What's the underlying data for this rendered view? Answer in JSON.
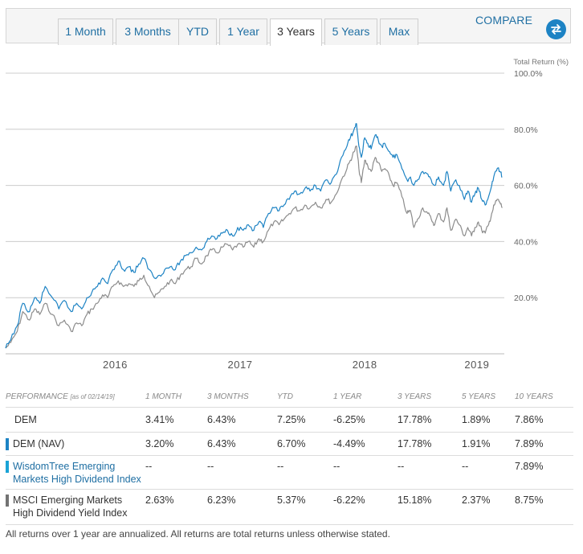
{
  "tabs": [
    {
      "label": "1 Month",
      "active": false
    },
    {
      "label": "3 Months",
      "active": false
    },
    {
      "label": "YTD",
      "active": false
    },
    {
      "label": "1 Year",
      "active": false
    },
    {
      "label": "3 Years",
      "active": true
    },
    {
      "label": "5 Years",
      "active": false
    },
    {
      "label": "Max",
      "active": false
    }
  ],
  "compare_label": "COMPARE",
  "icons": {
    "compare": "swap-arrows-icon"
  },
  "colors": {
    "dem": "#1d83c4",
    "nav": "#8c8c8c",
    "index": "#1aa3d6",
    "msci": "#737373",
    "grid": "#cccccc",
    "tab_text": "#1f6fa3"
  },
  "chart_data": {
    "type": "line",
    "ylabel": "Total Return (%)",
    "y_ticks": [
      "100.0%",
      "80.0%",
      "60.0%",
      "40.0%",
      "20.0%"
    ],
    "y_tick_values": [
      100,
      80,
      60,
      40,
      20
    ],
    "ylim": [
      0,
      100
    ],
    "x_ticks": [
      "2016",
      "2017",
      "2018",
      "2019"
    ],
    "x_tick_positions": [
      "2016-01-01",
      "2017-01-01",
      "2018-01-01",
      "2019-01-01"
    ],
    "x_range": [
      "2015-02-14",
      "2019-02-14"
    ],
    "grid": true,
    "series": [
      {
        "color": "#1d83c4",
        "points": [
          [
            "2015-02-14",
            2
          ],
          [
            "2015-03-01",
            5
          ],
          [
            "2015-03-20",
            10
          ],
          [
            "2015-04-05",
            18
          ],
          [
            "2015-04-25",
            15
          ],
          [
            "2015-05-10",
            20
          ],
          [
            "2015-05-25",
            18
          ],
          [
            "2015-06-10",
            24
          ],
          [
            "2015-07-01",
            20
          ],
          [
            "2015-07-20",
            16
          ],
          [
            "2015-08-05",
            19
          ],
          [
            "2015-08-25",
            15
          ],
          [
            "2015-09-10",
            18
          ],
          [
            "2015-09-25",
            16
          ],
          [
            "2015-10-10",
            20
          ],
          [
            "2015-10-25",
            22
          ],
          [
            "2015-11-10",
            24
          ],
          [
            "2015-11-25",
            27
          ],
          [
            "2015-12-10",
            25
          ],
          [
            "2015-12-25",
            30
          ],
          [
            "2016-01-10",
            33
          ],
          [
            "2016-01-25",
            30
          ],
          [
            "2016-02-10",
            31
          ],
          [
            "2016-02-25",
            29
          ],
          [
            "2016-03-10",
            32
          ],
          [
            "2016-03-25",
            34
          ],
          [
            "2016-04-10",
            30
          ],
          [
            "2016-04-25",
            27
          ],
          [
            "2016-05-10",
            28
          ],
          [
            "2016-05-25",
            30
          ],
          [
            "2016-06-10",
            31
          ],
          [
            "2016-06-25",
            30
          ],
          [
            "2016-07-10",
            33
          ],
          [
            "2016-07-25",
            35
          ],
          [
            "2016-08-10",
            36
          ],
          [
            "2016-08-25",
            38
          ],
          [
            "2016-09-10",
            37
          ],
          [
            "2016-09-25",
            40
          ],
          [
            "2016-10-10",
            42
          ],
          [
            "2016-10-25",
            41
          ],
          [
            "2016-11-10",
            43
          ],
          [
            "2016-11-25",
            44
          ],
          [
            "2016-12-10",
            42
          ],
          [
            "2016-12-25",
            45
          ],
          [
            "2017-01-10",
            44
          ],
          [
            "2017-01-25",
            46
          ],
          [
            "2017-02-10",
            44
          ],
          [
            "2017-02-25",
            47
          ],
          [
            "2017-03-10",
            45
          ],
          [
            "2017-03-25",
            50
          ],
          [
            "2017-04-10",
            52
          ],
          [
            "2017-04-25",
            51
          ],
          [
            "2017-05-10",
            53
          ],
          [
            "2017-05-25",
            55
          ],
          [
            "2017-06-10",
            58
          ],
          [
            "2017-06-25",
            57
          ],
          [
            "2017-07-10",
            59
          ],
          [
            "2017-07-25",
            58
          ],
          [
            "2017-08-10",
            60
          ],
          [
            "2017-08-25",
            58
          ],
          [
            "2017-09-10",
            62
          ],
          [
            "2017-09-25",
            61
          ],
          [
            "2017-10-10",
            64
          ],
          [
            "2017-10-25",
            70
          ],
          [
            "2017-11-10",
            74
          ],
          [
            "2017-11-20",
            77
          ],
          [
            "2017-12-01",
            80
          ],
          [
            "2017-12-08",
            82
          ],
          [
            "2017-12-15",
            74
          ],
          [
            "2017-12-22",
            70
          ],
          [
            "2018-01-01",
            77
          ],
          [
            "2018-01-10",
            75
          ],
          [
            "2018-01-20",
            73
          ],
          [
            "2018-02-01",
            78
          ],
          [
            "2018-02-10",
            76
          ],
          [
            "2018-02-20",
            74
          ],
          [
            "2018-03-01",
            75
          ],
          [
            "2018-03-15",
            72
          ],
          [
            "2018-03-25",
            70
          ],
          [
            "2018-04-05",
            71
          ],
          [
            "2018-04-20",
            66
          ],
          [
            "2018-05-05",
            62
          ],
          [
            "2018-05-15",
            63
          ],
          [
            "2018-05-25",
            60
          ],
          [
            "2018-06-05",
            62
          ],
          [
            "2018-06-20",
            65
          ],
          [
            "2018-07-05",
            64
          ],
          [
            "2018-07-15",
            62
          ],
          [
            "2018-07-25",
            60
          ],
          [
            "2018-08-05",
            63
          ],
          [
            "2018-08-20",
            60
          ],
          [
            "2018-08-30",
            65
          ],
          [
            "2018-09-10",
            58
          ],
          [
            "2018-09-25",
            62
          ],
          [
            "2018-10-05",
            60
          ],
          [
            "2018-10-20",
            55
          ],
          [
            "2018-10-30",
            58
          ],
          [
            "2018-11-10",
            54
          ],
          [
            "2018-11-20",
            57
          ],
          [
            "2018-11-30",
            59
          ],
          [
            "2018-12-10",
            55
          ],
          [
            "2018-12-20",
            53
          ],
          [
            "2018-12-30",
            56
          ],
          [
            "2019-01-08",
            60
          ],
          [
            "2019-01-16",
            64
          ],
          [
            "2019-01-24",
            66
          ],
          [
            "2019-02-01",
            65
          ],
          [
            "2019-02-08",
            63
          ]
        ]
      },
      {
        "color": "#8c8c8c",
        "points": [
          [
            "2015-02-14",
            2
          ],
          [
            "2015-03-01",
            4
          ],
          [
            "2015-03-20",
            8
          ],
          [
            "2015-04-05",
            15
          ],
          [
            "2015-04-25",
            12
          ],
          [
            "2015-05-10",
            16
          ],
          [
            "2015-05-25",
            14
          ],
          [
            "2015-06-10",
            18
          ],
          [
            "2015-07-01",
            14
          ],
          [
            "2015-07-20",
            10
          ],
          [
            "2015-08-05",
            12
          ],
          [
            "2015-08-25",
            8
          ],
          [
            "2015-09-10",
            11
          ],
          [
            "2015-09-25",
            10
          ],
          [
            "2015-10-10",
            14
          ],
          [
            "2015-10-25",
            16
          ],
          [
            "2015-11-10",
            18
          ],
          [
            "2015-11-25",
            21
          ],
          [
            "2015-12-10",
            20
          ],
          [
            "2015-12-25",
            24
          ],
          [
            "2016-01-10",
            26
          ],
          [
            "2016-01-25",
            24
          ],
          [
            "2016-02-10",
            25
          ],
          [
            "2016-02-25",
            24
          ],
          [
            "2016-03-10",
            26
          ],
          [
            "2016-03-25",
            28
          ],
          [
            "2016-04-10",
            24
          ],
          [
            "2016-04-25",
            20
          ],
          [
            "2016-05-10",
            22
          ],
          [
            "2016-05-25",
            24
          ],
          [
            "2016-06-10",
            26
          ],
          [
            "2016-06-25",
            25
          ],
          [
            "2016-07-10",
            28
          ],
          [
            "2016-07-25",
            30
          ],
          [
            "2016-08-10",
            31
          ],
          [
            "2016-08-25",
            34
          ],
          [
            "2016-09-10",
            32
          ],
          [
            "2016-09-25",
            35
          ],
          [
            "2016-10-10",
            37
          ],
          [
            "2016-10-25",
            36
          ],
          [
            "2016-11-10",
            38
          ],
          [
            "2016-11-25",
            39
          ],
          [
            "2016-12-10",
            37
          ],
          [
            "2016-12-25",
            39
          ],
          [
            "2017-01-10",
            38
          ],
          [
            "2017-01-25",
            40
          ],
          [
            "2017-02-10",
            38
          ],
          [
            "2017-02-25",
            41
          ],
          [
            "2017-03-10",
            40
          ],
          [
            "2017-03-25",
            44
          ],
          [
            "2017-04-10",
            47
          ],
          [
            "2017-04-25",
            46
          ],
          [
            "2017-05-10",
            48
          ],
          [
            "2017-05-25",
            50
          ],
          [
            "2017-06-10",
            52
          ],
          [
            "2017-06-25",
            51
          ],
          [
            "2017-07-10",
            53
          ],
          [
            "2017-07-25",
            52
          ],
          [
            "2017-08-10",
            54
          ],
          [
            "2017-08-25",
            52
          ],
          [
            "2017-09-10",
            55
          ],
          [
            "2017-09-25",
            54
          ],
          [
            "2017-10-10",
            57
          ],
          [
            "2017-10-25",
            62
          ],
          [
            "2017-11-10",
            66
          ],
          [
            "2017-11-20",
            69
          ],
          [
            "2017-12-01",
            72
          ],
          [
            "2017-12-08",
            74
          ],
          [
            "2017-12-15",
            66
          ],
          [
            "2017-12-22",
            61
          ],
          [
            "2018-01-01",
            69
          ],
          [
            "2018-01-10",
            67
          ],
          [
            "2018-01-20",
            65
          ],
          [
            "2018-02-01",
            70
          ],
          [
            "2018-02-10",
            68
          ],
          [
            "2018-02-20",
            65
          ],
          [
            "2018-03-01",
            66
          ],
          [
            "2018-03-15",
            63
          ],
          [
            "2018-03-25",
            60
          ],
          [
            "2018-04-05",
            61
          ],
          [
            "2018-04-20",
            56
          ],
          [
            "2018-05-05",
            50
          ],
          [
            "2018-05-15",
            51
          ],
          [
            "2018-05-25",
            45
          ],
          [
            "2018-06-05",
            48
          ],
          [
            "2018-06-20",
            52
          ],
          [
            "2018-07-05",
            50
          ],
          [
            "2018-07-15",
            48
          ],
          [
            "2018-07-25",
            46
          ],
          [
            "2018-08-05",
            50
          ],
          [
            "2018-08-20",
            47
          ],
          [
            "2018-08-30",
            52
          ],
          [
            "2018-09-10",
            44
          ],
          [
            "2018-09-25",
            48
          ],
          [
            "2018-10-05",
            46
          ],
          [
            "2018-10-20",
            42
          ],
          [
            "2018-10-30",
            45
          ],
          [
            "2018-11-10",
            42
          ],
          [
            "2018-11-20",
            45
          ],
          [
            "2018-11-30",
            47
          ],
          [
            "2018-12-10",
            44
          ],
          [
            "2018-12-20",
            43
          ],
          [
            "2018-12-30",
            46
          ],
          [
            "2019-01-08",
            50
          ],
          [
            "2019-01-16",
            53
          ],
          [
            "2019-01-24",
            55
          ],
          [
            "2019-02-01",
            54
          ],
          [
            "2019-02-08",
            52
          ]
        ]
      }
    ]
  },
  "performance": {
    "header_label": "PERFORMANCE",
    "as_of": "[as of 02/14/19]",
    "columns": [
      "1 MONTH",
      "3 MONTHS",
      "YTD",
      "1 YEAR",
      "3 YEARS",
      "5 YEARS",
      "10 YEARS"
    ],
    "rows": [
      {
        "name": "DEM",
        "marker": "",
        "values": [
          "3.41%",
          "6.43%",
          "7.25%",
          "-6.25%",
          "17.78%",
          "1.89%",
          "7.86%"
        ]
      },
      {
        "name": "DEM (NAV)",
        "marker": "#1d83c4",
        "values": [
          "3.20%",
          "6.43%",
          "6.70%",
          "-4.49%",
          "17.78%",
          "1.91%",
          "7.89%"
        ]
      },
      {
        "name": "WisdomTree Emerging Markets High Dividend Index",
        "marker": "#1aa3d6",
        "values": [
          "--",
          "--",
          "--",
          "--",
          "--",
          "--",
          "7.89%"
        ]
      },
      {
        "name": "MSCI Emerging Markets High Dividend Yield Index",
        "marker": "#737373",
        "values": [
          "2.63%",
          "6.23%",
          "5.37%",
          "-6.22%",
          "15.18%",
          "2.37%",
          "8.75%"
        ]
      }
    ]
  },
  "footnote": "All returns over 1 year are annualized. All returns are total returns unless otherwise stated."
}
